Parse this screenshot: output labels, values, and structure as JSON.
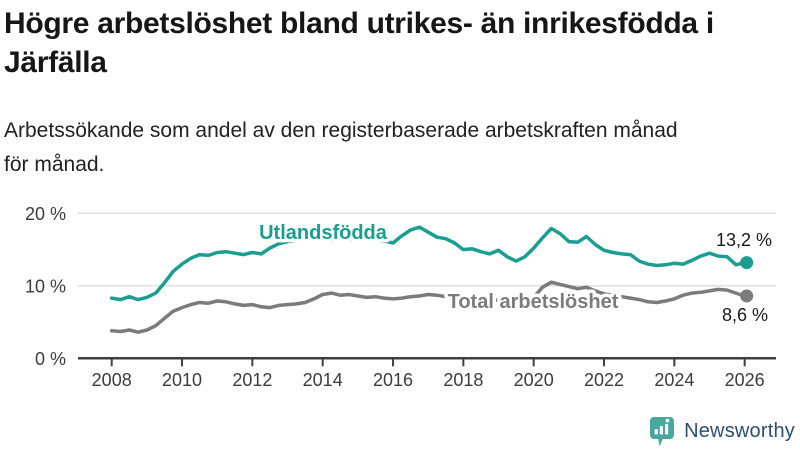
{
  "header": {
    "title_lines": [
      "Högre arbetslöshet bland utrikes- än inrikesfödda i",
      "Järfälla"
    ],
    "subtitle_lines": [
      "Arbetssökande som andel av den registerbaserade arbetskraften månad",
      "för månad."
    ]
  },
  "branding": {
    "name": "Newsworthy",
    "icon": "newsworthy-pin-barchart-icon",
    "icon_color": "#49a79e",
    "text_color": "#2d4f72"
  },
  "chart_data": {
    "type": "line",
    "title": "Högre arbetslöshet bland utrikes- än inrikesfödda i Järfälla",
    "subtitle": "Arbetssökande som andel av den registerbaserade arbetskraften månad för månad.",
    "xlabel": "",
    "ylabel": "",
    "unit": "%",
    "grid": "horizontal",
    "legend_position": "inline-labels",
    "x_start_year": 2008,
    "x_step_years": 0.25,
    "xlim": [
      2007.8,
      2026.9
    ],
    "ylim": [
      0,
      21.5
    ],
    "x_ticks": [
      2008,
      2010,
      2012,
      2014,
      2016,
      2018,
      2020,
      2022,
      2024,
      2026
    ],
    "x_tick_labels": [
      "2008",
      "2010",
      "2012",
      "2014",
      "2016",
      "2018",
      "2020",
      "2022",
      "2024",
      "2026"
    ],
    "y_ticks": [
      {
        "value": 0,
        "label": "0 %"
      },
      {
        "value": 10,
        "label": "10 %"
      },
      {
        "value": 20,
        "label": "20 %"
      }
    ],
    "series": [
      {
        "name": "Utlandsfödda",
        "color": "#1a9e91",
        "end_value": 13.2,
        "end_label": "13,2 %",
        "values": [
          8.3,
          8.1,
          8.5,
          8.1,
          8.4,
          9.0,
          10.4,
          12.0,
          13.0,
          13.8,
          14.3,
          14.2,
          14.6,
          14.7,
          14.5,
          14.3,
          14.6,
          14.4,
          15.2,
          15.8,
          16.1,
          16.3,
          16.4,
          16.3,
          16.4,
          16.3,
          16.5,
          16.4,
          16.5,
          16.4,
          16.3,
          16.2,
          15.9,
          16.9,
          17.7,
          18.1,
          17.4,
          16.7,
          16.5,
          15.9,
          15.0,
          15.1,
          14.7,
          14.4,
          14.9,
          14.0,
          13.4,
          14.0,
          15.2,
          16.6,
          17.9,
          17.2,
          16.1,
          16.0,
          16.8,
          15.7,
          14.9,
          14.6,
          14.4,
          14.3,
          13.4,
          13.0,
          12.8,
          12.9,
          13.1,
          13.0,
          13.5,
          14.1,
          14.5,
          14.1,
          14.0,
          12.9,
          13.2
        ]
      },
      {
        "name": "Total arbetslöshet",
        "color": "#7b7b7b",
        "end_value": 8.6,
        "end_label": "8,6 %",
        "values": [
          3.8,
          3.7,
          3.9,
          3.6,
          3.9,
          4.5,
          5.5,
          6.5,
          7.0,
          7.4,
          7.7,
          7.6,
          7.9,
          7.8,
          7.5,
          7.3,
          7.4,
          7.1,
          7.0,
          7.3,
          7.4,
          7.5,
          7.7,
          8.2,
          8.8,
          9.0,
          8.7,
          8.8,
          8.6,
          8.4,
          8.5,
          8.3,
          8.2,
          8.3,
          8.5,
          8.6,
          8.8,
          8.7,
          8.5,
          8.4,
          8.2,
          8.1,
          8.0,
          8.1,
          8.0,
          7.9,
          7.8,
          8.0,
          8.4,
          9.8,
          10.5,
          10.2,
          9.9,
          9.6,
          9.8,
          9.3,
          8.9,
          8.7,
          8.5,
          8.3,
          8.1,
          7.8,
          7.7,
          7.9,
          8.2,
          8.7,
          9.0,
          9.1,
          9.3,
          9.5,
          9.4,
          9.0,
          8.6
        ]
      }
    ]
  }
}
